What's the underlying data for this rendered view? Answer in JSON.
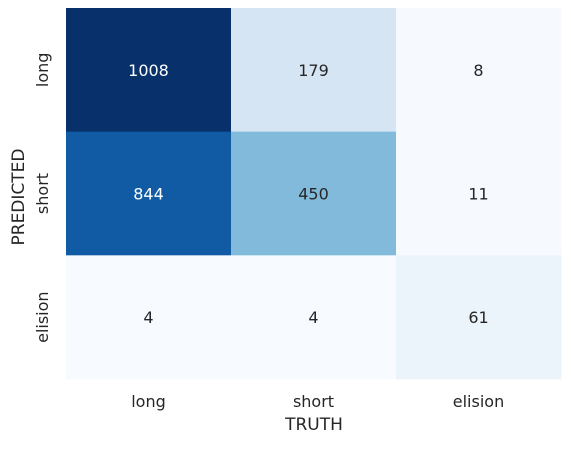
{
  "chart_data": {
    "type": "heatmap",
    "title": "",
    "xlabel": "TRUTH",
    "ylabel": "PREDICTED",
    "x_categories": [
      "long",
      "short",
      "elision"
    ],
    "y_categories": [
      "long",
      "short",
      "elision"
    ],
    "values": [
      [
        1008,
        179,
        8
      ],
      [
        844,
        450,
        11
      ],
      [
        4,
        4,
        61
      ]
    ],
    "colormap": "Blues",
    "colorbar": false,
    "grid": false,
    "colors": {
      "low": "#f7fbff",
      "high": "#08306b",
      "text_on_dark": "#ffffff",
      "text_on_light": "#262626",
      "axis_text": "#262626"
    }
  }
}
